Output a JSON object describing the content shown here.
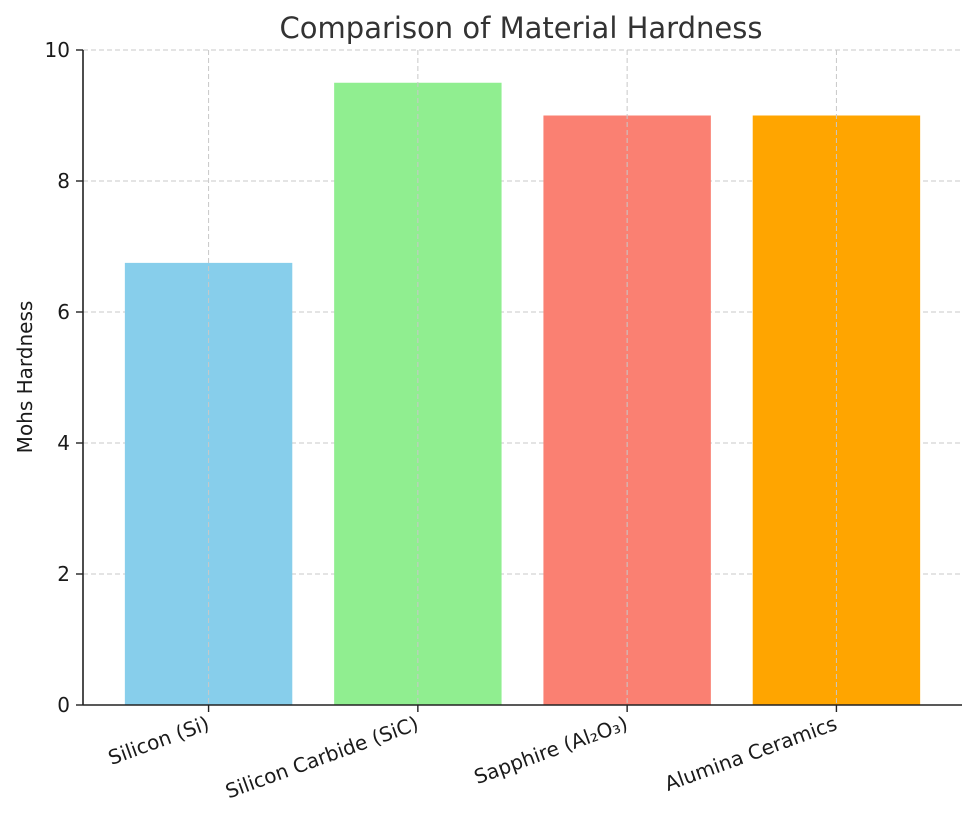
{
  "chart_data": {
    "type": "bar",
    "title": "Comparison of Material Hardness",
    "xlabel": "",
    "ylabel": "Mohs Hardness",
    "categories": [
      "Silicon (Si)",
      "Silicon Carbide (SiC)",
      "Sapphire (Al₂O₃)",
      "Alumina Ceramics"
    ],
    "values": [
      6.75,
      9.5,
      9.0,
      9.0
    ],
    "colors": [
      "#87CEEB",
      "#90EE90",
      "#FA8072",
      "#FFA500"
    ],
    "ylim": [
      0,
      10
    ],
    "yticks": [
      0,
      2,
      4,
      6,
      8,
      10
    ],
    "grid": true,
    "legend": "none"
  }
}
